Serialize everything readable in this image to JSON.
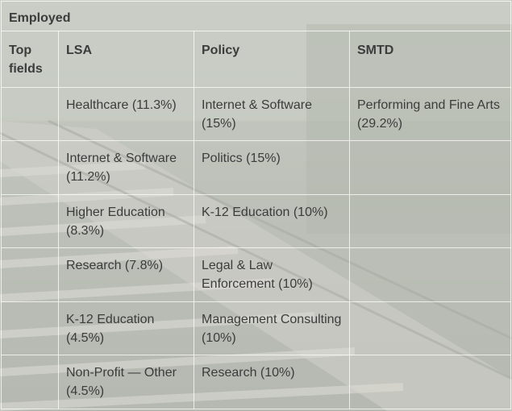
{
  "table": {
    "title": "Employed",
    "headers": [
      "Top fields",
      "LSA",
      "Policy",
      "SMTD"
    ],
    "rows": [
      [
        "",
        "Healthcare (11.3%)",
        "Internet & Software (15%)",
        "Performing and Fine Arts (29.2%)"
      ],
      [
        "",
        "Internet & Software (11.2%)",
        "Politics (15%)",
        ""
      ],
      [
        "",
        "Higher Education (8.3%)",
        "K-12 Education (10%)",
        ""
      ],
      [
        "",
        "Research (7.8%)",
        "Legal & Law Enforcement (10%)",
        ""
      ],
      [
        "",
        "K-12 Education (4.5%)",
        "Management Consulting (10%)",
        ""
      ],
      [
        "",
        "Non-Profit — Other (4.5%)",
        "Research (10%)",
        ""
      ]
    ]
  },
  "colors": {
    "text": "#3c3c3c",
    "grid_line": "#ffffff",
    "overlay": "#ecece8"
  },
  "background_image": "railroad-tracks-photo"
}
